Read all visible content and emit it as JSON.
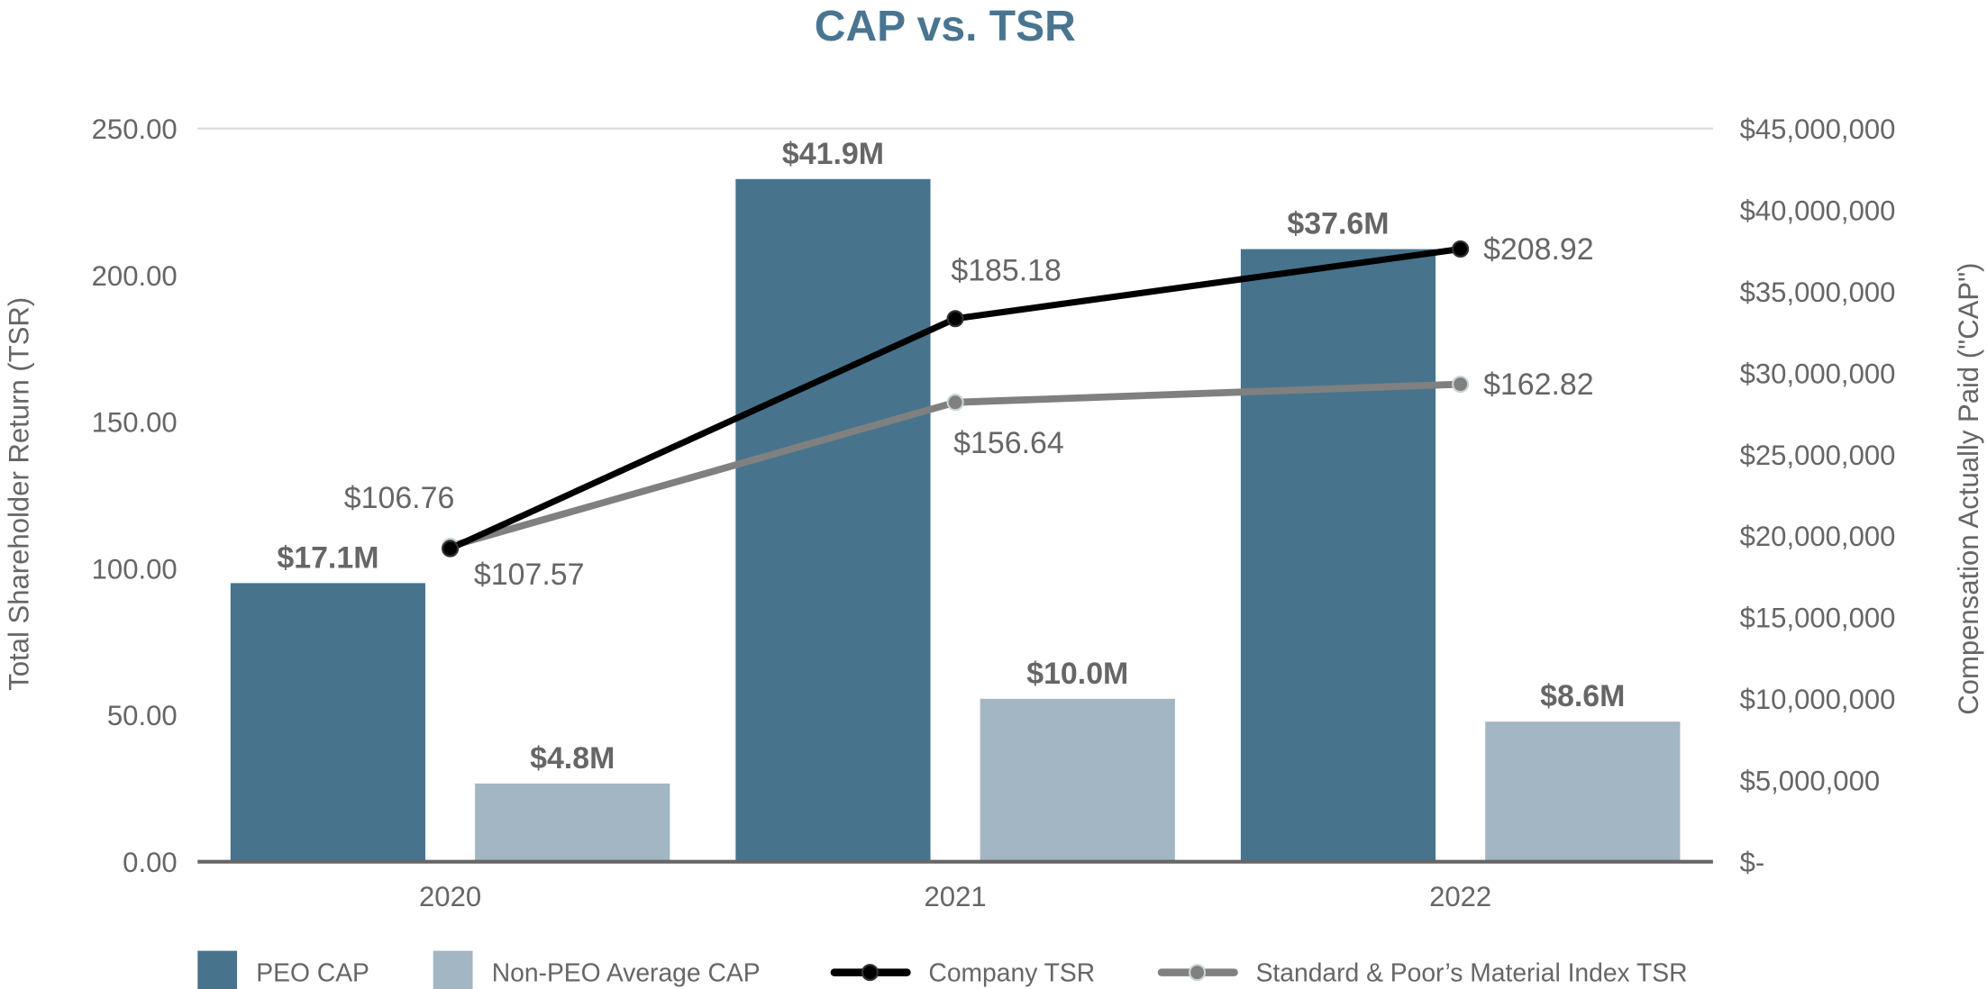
{
  "chart_data": {
    "type": "bar",
    "title": "CAP vs. TSR",
    "categories": [
      "2020",
      "2021",
      "2022"
    ],
    "ylabel_left": "Total Shareholder Return (TSR)",
    "ylabel_right": "Compensation Actually Paid (\"CAP\")",
    "ylim_left": [
      0,
      250
    ],
    "ylim_right": [
      0,
      45000000
    ],
    "left_ticks": [
      "0.00",
      "50.00",
      "100.00",
      "150.00",
      "200.00",
      "250.00"
    ],
    "right_ticks": [
      "$-",
      "$5,000,000",
      "$10,000,000",
      "$15,000,000",
      "$20,000,000",
      "$25,000,000",
      "$30,000,000",
      "$35,000,000",
      "$40,000,000",
      "$45,000,000"
    ],
    "grid": "top line only",
    "legend_placement": "bottom",
    "bar_series": [
      {
        "name": "PEO CAP",
        "axis": "right",
        "color": "#47748C",
        "values": [
          17100000,
          41900000,
          37600000
        ],
        "labels": [
          "$17.1M",
          "$41.9M",
          "$37.6M"
        ]
      },
      {
        "name": "Non-PEO Average CAP",
        "axis": "right",
        "color": "#A2B6C3",
        "values": [
          4800000,
          10000000,
          8600000
        ],
        "labels": [
          "$4.8M",
          "$10.0M",
          "$8.6M"
        ]
      }
    ],
    "line_series": [
      {
        "name": "Company TSR",
        "axis": "left",
        "color": "#000000",
        "values": [
          106.76,
          185.18,
          208.92
        ],
        "labels": [
          "$106.76",
          "$185.18",
          "$208.92"
        ]
      },
      {
        "name": "Standard & Poor’s Material Index TSR",
        "axis": "left",
        "color": "#808080",
        "values": [
          107.57,
          156.64,
          162.82
        ],
        "labels": [
          "$107.57",
          "$156.64",
          "$162.82"
        ]
      }
    ]
  },
  "colors": {
    "title": "#4A7590",
    "text": "#666666",
    "axis": "#666666",
    "grid": "#D9D9D9"
  }
}
